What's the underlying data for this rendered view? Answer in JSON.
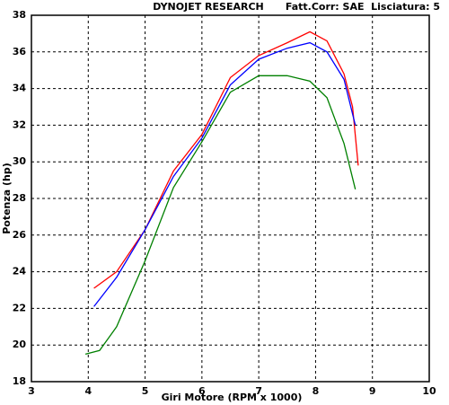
{
  "chart_data": {
    "type": "line",
    "title": "DYNOJET RESEARCH",
    "subtitle": "Fatt.Corr: SAE  Lisciatura: 5",
    "x_label": "Giri Motore (RPM x 1000)",
    "y_label": "Potenza (hp)",
    "xlim": [
      3,
      10
    ],
    "xticks": [
      3,
      4,
      5,
      6,
      7,
      8,
      9,
      10
    ],
    "ylim": [
      18,
      38
    ],
    "yticks": [
      18,
      20,
      22,
      24,
      26,
      28,
      30,
      32,
      34,
      36,
      38
    ],
    "grid": true,
    "series": [
      {
        "color": "#ff0000",
        "x": [
          4.1,
          4.5,
          5.0,
          5.5,
          6.0,
          6.5,
          7.0,
          7.5,
          7.9,
          8.2,
          8.5,
          8.65,
          8.75
        ],
        "values": [
          23.1,
          24.0,
          26.3,
          29.5,
          31.5,
          34.6,
          35.8,
          36.5,
          37.1,
          36.6,
          34.8,
          33.0,
          29.8
        ]
      },
      {
        "color": "#0000ff",
        "x": [
          4.1,
          4.5,
          5.0,
          5.5,
          6.0,
          6.5,
          7.0,
          7.5,
          7.9,
          8.2,
          8.5,
          8.7
        ],
        "values": [
          22.1,
          23.7,
          26.3,
          29.2,
          31.3,
          34.2,
          35.6,
          36.2,
          36.5,
          36.0,
          34.5,
          32.0
        ]
      },
      {
        "color": "#008000",
        "x": [
          3.95,
          4.2,
          4.5,
          5.0,
          5.5,
          6.0,
          6.5,
          7.0,
          7.5,
          7.9,
          8.2,
          8.5,
          8.7
        ],
        "values": [
          19.5,
          19.7,
          21.0,
          24.6,
          28.6,
          31.1,
          33.8,
          34.7,
          34.7,
          34.4,
          33.5,
          31.0,
          28.5
        ]
      }
    ]
  }
}
